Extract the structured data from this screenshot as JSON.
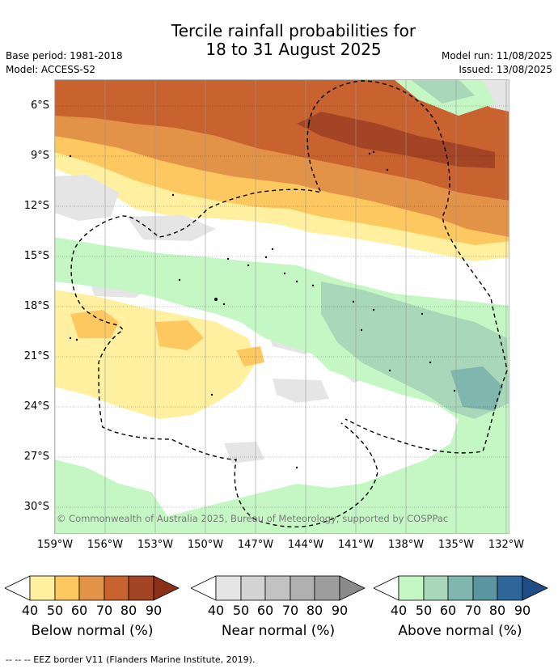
{
  "title": {
    "line1": "Tercile rainfall probabilities for",
    "line2": "18 to 31 August 2025"
  },
  "meta": {
    "base_period": "Base period: 1981-2018",
    "model": "Model: ACCESS-S2",
    "model_run": "Model run: 11/08/2025",
    "issued": "Issued: 13/08/2025"
  },
  "map": {
    "lat_labels": [
      "6°S",
      "9°S",
      "12°S",
      "15°S",
      "18°S",
      "21°S",
      "24°S",
      "27°S",
      "30°S"
    ],
    "lon_labels": [
      "159°W",
      "156°W",
      "153°W",
      "150°W",
      "147°W",
      "144°W",
      "141°W",
      "138°W",
      "135°W",
      "132°W"
    ],
    "copyright": "© Commonwealth of Australia 2025, Bureau of Meteorology, supported by COSPPac"
  },
  "colorbars": [
    {
      "title": "Below normal (%)",
      "ticks": [
        "40",
        "50",
        "60",
        "70",
        "80",
        "90"
      ],
      "colors": [
        "#fff0a0",
        "#fec860",
        "#e39347",
        "#c8622f",
        "#a34424",
        "#8a2f18"
      ]
    },
    {
      "title": "Near normal (%)",
      "ticks": [
        "40",
        "50",
        "60",
        "70",
        "80",
        "90"
      ],
      "colors": [
        "#e5e5e5",
        "#d3d3d3",
        "#c2c2c2",
        "#b0b0b0",
        "#9e9e9e",
        "#8a8a8a"
      ]
    },
    {
      "title": "Above normal (%)",
      "ticks": [
        "40",
        "50",
        "60",
        "70",
        "80",
        "90"
      ],
      "colors": [
        "#c5f7c5",
        "#a8d8b9",
        "#7fb6ad",
        "#5b96a0",
        "#2f6699",
        "#1f4d86"
      ]
    }
  ],
  "legend_footer": "-- -- -- EEZ border V11 (Flanders Marine Institute, 2019)."
}
